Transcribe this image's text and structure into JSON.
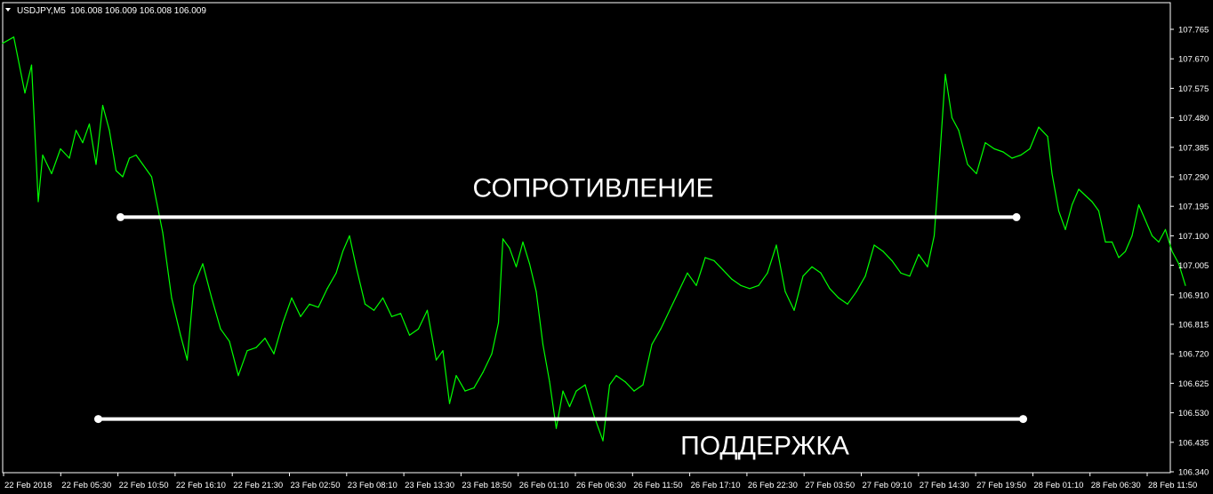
{
  "header": {
    "symbol": "USDJPY,M5",
    "ohlc": "106.008 106.009 106.008 106.009"
  },
  "chart_data": {
    "type": "line",
    "grid": false,
    "colors": {
      "background": "#000000",
      "line": "#00ff00",
      "axis": "#ffffff",
      "annotation": "#ffffff"
    },
    "ylim": [
      106.34,
      107.765
    ],
    "y_ticks": [
      "107.765",
      "107.670",
      "107.575",
      "107.480",
      "107.385",
      "107.290",
      "107.195",
      "107.100",
      "107.005",
      "106.910",
      "106.815",
      "106.720",
      "106.625",
      "106.530",
      "106.435",
      "106.340"
    ],
    "x_ticks": [
      "22 Feb 2018",
      "22 Feb 05:30",
      "22 Feb 10:50",
      "22 Feb 16:10",
      "22 Feb 21:30",
      "23 Feb 02:50",
      "23 Feb 08:10",
      "23 Feb 13:30",
      "23 Feb 18:50",
      "26 Feb 01:10",
      "26 Feb 06:30",
      "26 Feb 11:50",
      "26 Feb 17:10",
      "26 Feb 22:30",
      "27 Feb 03:50",
      "27 Feb 09:10",
      "27 Feb 14:30",
      "27 Feb 19:50",
      "28 Feb 01:10",
      "28 Feb 06:30",
      "28 Feb 11:50"
    ],
    "series": [
      {
        "values": [
          {
            "x": 0,
            "y": 107.72
          },
          {
            "x": 0.5,
            "y": 107.74
          },
          {
            "x": 1.0,
            "y": 107.56
          },
          {
            "x": 1.3,
            "y": 107.65
          },
          {
            "x": 1.6,
            "y": 107.21
          },
          {
            "x": 1.8,
            "y": 107.36
          },
          {
            "x": 2.2,
            "y": 107.3
          },
          {
            "x": 2.6,
            "y": 107.38
          },
          {
            "x": 3.0,
            "y": 107.35
          },
          {
            "x": 3.3,
            "y": 107.44
          },
          {
            "x": 3.6,
            "y": 107.4
          },
          {
            "x": 3.9,
            "y": 107.46
          },
          {
            "x": 4.2,
            "y": 107.33
          },
          {
            "x": 4.5,
            "y": 107.52
          },
          {
            "x": 4.8,
            "y": 107.44
          },
          {
            "x": 5.1,
            "y": 107.31
          },
          {
            "x": 5.4,
            "y": 107.29
          },
          {
            "x": 5.7,
            "y": 107.35
          },
          {
            "x": 6.0,
            "y": 107.36
          },
          {
            "x": 6.3,
            "y": 107.33
          },
          {
            "x": 6.7,
            "y": 107.29
          },
          {
            "x": 7.2,
            "y": 107.11
          },
          {
            "x": 7.6,
            "y": 106.9
          },
          {
            "x": 8.0,
            "y": 106.78
          },
          {
            "x": 8.3,
            "y": 106.7
          },
          {
            "x": 8.6,
            "y": 106.94
          },
          {
            "x": 9.0,
            "y": 107.01
          },
          {
            "x": 9.4,
            "y": 106.9
          },
          {
            "x": 9.8,
            "y": 106.8
          },
          {
            "x": 10.2,
            "y": 106.76
          },
          {
            "x": 10.6,
            "y": 106.65
          },
          {
            "x": 11.0,
            "y": 106.73
          },
          {
            "x": 11.4,
            "y": 106.74
          },
          {
            "x": 11.8,
            "y": 106.77
          },
          {
            "x": 12.2,
            "y": 106.72
          },
          {
            "x": 12.6,
            "y": 106.82
          },
          {
            "x": 13.0,
            "y": 106.9
          },
          {
            "x": 13.4,
            "y": 106.84
          },
          {
            "x": 13.8,
            "y": 106.88
          },
          {
            "x": 14.2,
            "y": 106.87
          },
          {
            "x": 14.6,
            "y": 106.93
          },
          {
            "x": 15.0,
            "y": 106.98
          },
          {
            "x": 15.3,
            "y": 107.05
          },
          {
            "x": 15.6,
            "y": 107.1
          },
          {
            "x": 15.9,
            "y": 107.0
          },
          {
            "x": 16.3,
            "y": 106.88
          },
          {
            "x": 16.7,
            "y": 106.86
          },
          {
            "x": 17.1,
            "y": 106.9
          },
          {
            "x": 17.5,
            "y": 106.84
          },
          {
            "x": 17.9,
            "y": 106.85
          },
          {
            "x": 18.3,
            "y": 106.78
          },
          {
            "x": 18.7,
            "y": 106.8
          },
          {
            "x": 19.1,
            "y": 106.86
          },
          {
            "x": 19.5,
            "y": 106.7
          },
          {
            "x": 19.8,
            "y": 106.73
          },
          {
            "x": 20.1,
            "y": 106.56
          },
          {
            "x": 20.4,
            "y": 106.65
          },
          {
            "x": 20.8,
            "y": 106.6
          },
          {
            "x": 21.2,
            "y": 106.61
          },
          {
            "x": 21.6,
            "y": 106.66
          },
          {
            "x": 22.0,
            "y": 106.72
          },
          {
            "x": 22.3,
            "y": 106.82
          },
          {
            "x": 22.5,
            "y": 107.09
          },
          {
            "x": 22.8,
            "y": 107.06
          },
          {
            "x": 23.1,
            "y": 107.0
          },
          {
            "x": 23.4,
            "y": 107.08
          },
          {
            "x": 23.7,
            "y": 107.01
          },
          {
            "x": 24.0,
            "y": 106.92
          },
          {
            "x": 24.3,
            "y": 106.75
          },
          {
            "x": 24.6,
            "y": 106.63
          },
          {
            "x": 24.9,
            "y": 106.48
          },
          {
            "x": 25.2,
            "y": 106.6
          },
          {
            "x": 25.5,
            "y": 106.55
          },
          {
            "x": 25.8,
            "y": 106.6
          },
          {
            "x": 26.2,
            "y": 106.62
          },
          {
            "x": 26.6,
            "y": 106.52
          },
          {
            "x": 27.0,
            "y": 106.44
          },
          {
            "x": 27.3,
            "y": 106.62
          },
          {
            "x": 27.6,
            "y": 106.65
          },
          {
            "x": 28.0,
            "y": 106.63
          },
          {
            "x": 28.4,
            "y": 106.6
          },
          {
            "x": 28.8,
            "y": 106.62
          },
          {
            "x": 29.2,
            "y": 106.75
          },
          {
            "x": 29.6,
            "y": 106.8
          },
          {
            "x": 30.0,
            "y": 106.86
          },
          {
            "x": 30.4,
            "y": 106.92
          },
          {
            "x": 30.8,
            "y": 106.98
          },
          {
            "x": 31.2,
            "y": 106.94
          },
          {
            "x": 31.6,
            "y": 107.03
          },
          {
            "x": 32.0,
            "y": 107.02
          },
          {
            "x": 32.4,
            "y": 106.99
          },
          {
            "x": 32.8,
            "y": 106.96
          },
          {
            "x": 33.2,
            "y": 106.94
          },
          {
            "x": 33.6,
            "y": 106.93
          },
          {
            "x": 34.0,
            "y": 106.94
          },
          {
            "x": 34.4,
            "y": 106.98
          },
          {
            "x": 34.8,
            "y": 107.07
          },
          {
            "x": 35.2,
            "y": 106.92
          },
          {
            "x": 35.6,
            "y": 106.86
          },
          {
            "x": 36.0,
            "y": 106.97
          },
          {
            "x": 36.4,
            "y": 107.0
          },
          {
            "x": 36.8,
            "y": 106.98
          },
          {
            "x": 37.2,
            "y": 106.93
          },
          {
            "x": 37.6,
            "y": 106.9
          },
          {
            "x": 38.0,
            "y": 106.88
          },
          {
            "x": 38.4,
            "y": 106.92
          },
          {
            "x": 38.8,
            "y": 106.97
          },
          {
            "x": 39.2,
            "y": 107.07
          },
          {
            "x": 39.6,
            "y": 107.05
          },
          {
            "x": 40.0,
            "y": 107.02
          },
          {
            "x": 40.4,
            "y": 106.98
          },
          {
            "x": 40.8,
            "y": 106.97
          },
          {
            "x": 41.2,
            "y": 107.04
          },
          {
            "x": 41.6,
            "y": 107.0
          },
          {
            "x": 41.9,
            "y": 107.1
          },
          {
            "x": 42.1,
            "y": 107.3
          },
          {
            "x": 42.4,
            "y": 107.62
          },
          {
            "x": 42.7,
            "y": 107.48
          },
          {
            "x": 43.0,
            "y": 107.44
          },
          {
            "x": 43.4,
            "y": 107.33
          },
          {
            "x": 43.8,
            "y": 107.3
          },
          {
            "x": 44.2,
            "y": 107.4
          },
          {
            "x": 44.6,
            "y": 107.38
          },
          {
            "x": 45.0,
            "y": 107.37
          },
          {
            "x": 45.4,
            "y": 107.35
          },
          {
            "x": 45.8,
            "y": 107.36
          },
          {
            "x": 46.2,
            "y": 107.38
          },
          {
            "x": 46.6,
            "y": 107.45
          },
          {
            "x": 47.0,
            "y": 107.42
          },
          {
            "x": 47.2,
            "y": 107.3
          },
          {
            "x": 47.5,
            "y": 107.18
          },
          {
            "x": 47.8,
            "y": 107.12
          },
          {
            "x": 48.1,
            "y": 107.2
          },
          {
            "x": 48.4,
            "y": 107.25
          },
          {
            "x": 48.7,
            "y": 107.23
          },
          {
            "x": 49.0,
            "y": 107.21
          },
          {
            "x": 49.3,
            "y": 107.18
          },
          {
            "x": 49.6,
            "y": 107.08
          },
          {
            "x": 49.9,
            "y": 107.08
          },
          {
            "x": 50.2,
            "y": 107.03
          },
          {
            "x": 50.5,
            "y": 107.05
          },
          {
            "x": 50.8,
            "y": 107.1
          },
          {
            "x": 51.1,
            "y": 107.2
          },
          {
            "x": 51.4,
            "y": 107.15
          },
          {
            "x": 51.7,
            "y": 107.1
          },
          {
            "x": 52.0,
            "y": 107.08
          },
          {
            "x": 52.3,
            "y": 107.12
          },
          {
            "x": 52.6,
            "y": 107.05
          },
          {
            "x": 52.9,
            "y": 107.01
          },
          {
            "x": 53.2,
            "y": 106.94
          }
        ]
      }
    ],
    "annotations": [
      {
        "type": "hline",
        "label": "СОПРОТИВЛЕНИЕ",
        "y": 107.16,
        "x1": 5.3,
        "x2": 45.6
      },
      {
        "type": "hline",
        "label": "ПОДДЕРЖКА",
        "y": 106.51,
        "x1": 4.3,
        "x2": 45.9
      }
    ]
  }
}
